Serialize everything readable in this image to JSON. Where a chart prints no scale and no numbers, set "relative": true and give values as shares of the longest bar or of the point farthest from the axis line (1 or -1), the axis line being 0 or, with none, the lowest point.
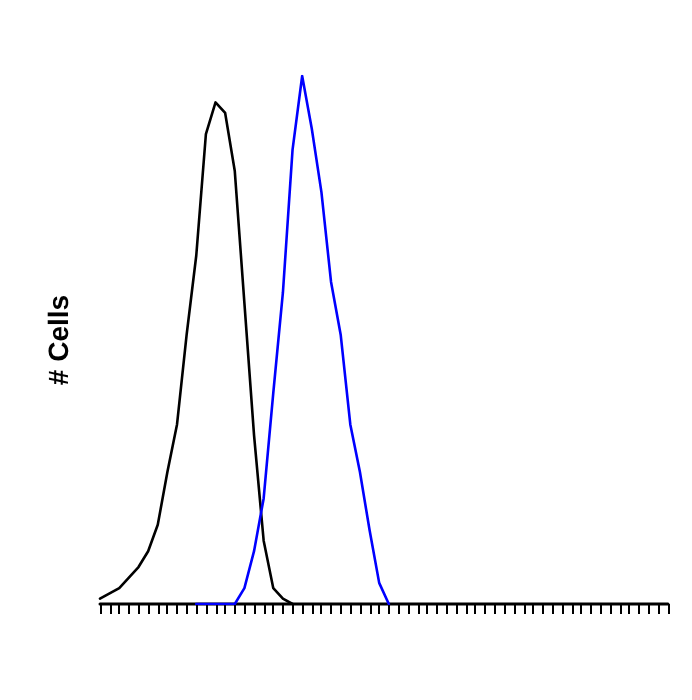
{
  "chart_data": {
    "type": "line",
    "ylabel": "# Cells",
    "relative": true,
    "grid": false,
    "line_style": "solid",
    "categories": [
      null,
      null,
      null,
      null,
      null,
      null,
      null,
      null,
      null,
      null,
      null,
      null,
      null,
      null,
      null,
      null,
      null,
      null,
      null,
      null,
      null,
      null,
      null,
      null,
      null,
      null,
      null,
      null,
      null,
      null,
      null,
      null,
      null,
      null,
      null,
      null,
      null,
      null,
      null,
      null,
      null,
      null,
      null,
      null,
      null,
      null,
      null,
      null,
      null,
      null,
      null,
      null,
      null,
      null,
      null,
      null,
      null,
      null,
      null,
      null
    ],
    "series": [
      {
        "color": "#000000",
        "values": [
          0.01,
          0.02,
          0.03,
          0.05,
          0.07,
          0.1,
          0.15,
          0.25,
          0.34,
          0.51,
          0.66,
          0.89,
          0.95,
          0.93,
          0.82,
          0.57,
          0.32,
          0.12,
          0.03,
          0.01,
          0,
          null,
          null,
          null,
          null,
          null,
          null,
          null,
          null,
          null,
          null,
          null,
          null,
          null,
          null,
          null,
          null,
          null,
          null,
          null,
          null,
          null,
          null,
          null,
          null,
          null,
          null,
          null,
          null,
          null,
          null,
          null,
          null,
          null,
          null,
          null,
          null,
          null,
          null,
          null
        ]
      },
      {
        "color": "#0000ff",
        "values": [
          null,
          null,
          null,
          null,
          null,
          null,
          null,
          null,
          null,
          null,
          0,
          0,
          0,
          0,
          0,
          0.03,
          0.1,
          0.2,
          0.4,
          0.59,
          0.86,
          1,
          0.9,
          0.78,
          0.61,
          0.51,
          0.34,
          0.25,
          0.14,
          0.04,
          0,
          null,
          null,
          null,
          null,
          null,
          null,
          null,
          null,
          null,
          null,
          null,
          null,
          null,
          null,
          null,
          null,
          null,
          null,
          null,
          null,
          null,
          null,
          null,
          null,
          null,
          null,
          null,
          null,
          null
        ]
      }
    ]
  }
}
